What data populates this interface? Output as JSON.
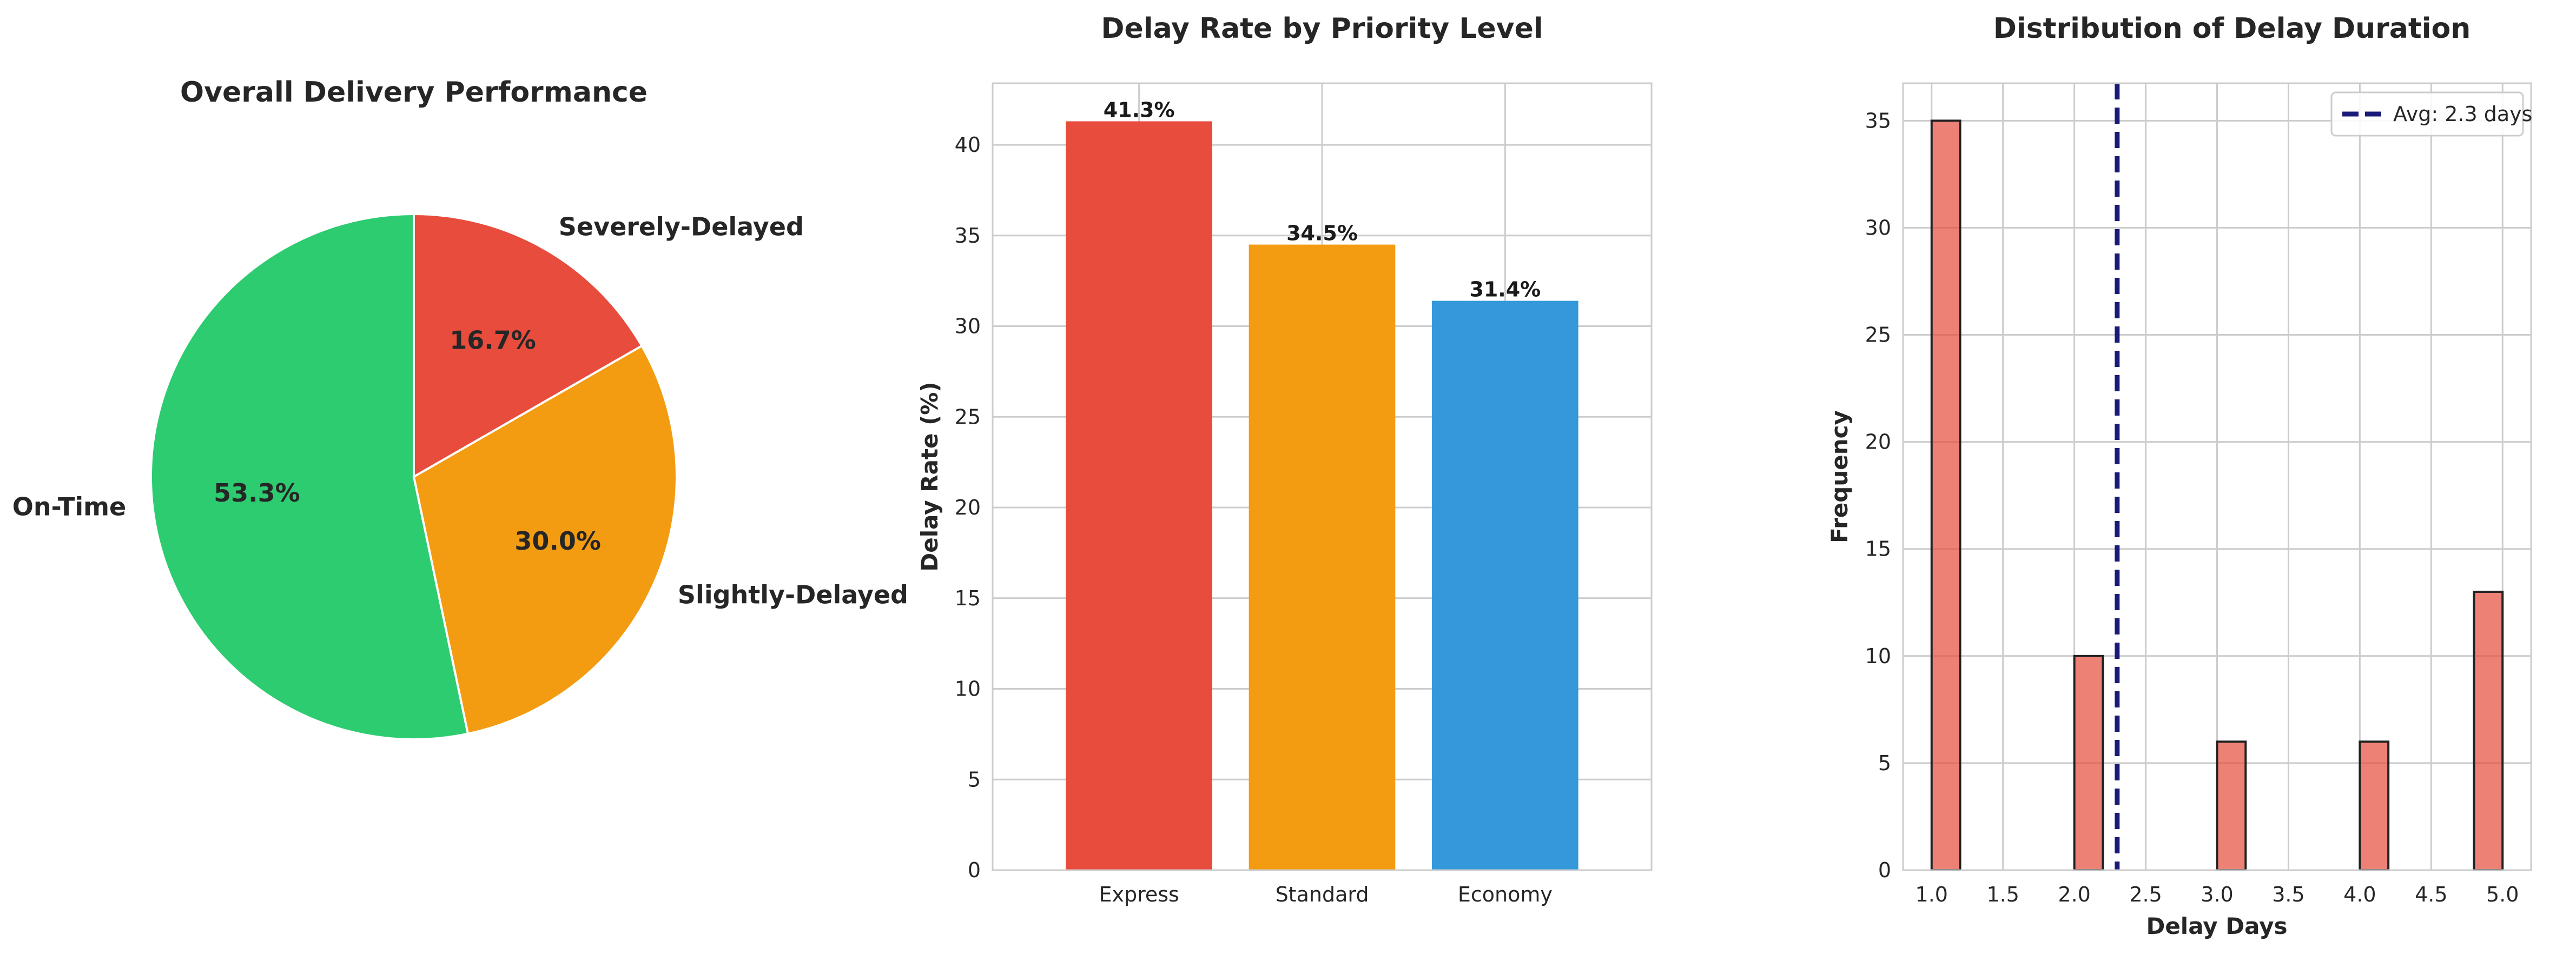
{
  "chart_data": [
    {
      "type": "pie",
      "title": "Overall Delivery Performance",
      "slices": [
        {
          "label": "On-Time",
          "value": 53.3,
          "pct_label": "53.3%",
          "color": "#2ecc71"
        },
        {
          "label": "Slightly-Delayed",
          "value": 30.0,
          "pct_label": "30.0%",
          "color": "#f39c12"
        },
        {
          "label": "Severely-Delayed",
          "value": 16.7,
          "pct_label": "16.7%",
          "color": "#e74c3c"
        }
      ],
      "start_angle_deg": 90,
      "direction": "counterclockwise"
    },
    {
      "type": "bar",
      "title": "Delay Rate by Priority Level",
      "categories": [
        "Express",
        "Standard",
        "Economy"
      ],
      "values": [
        41.3,
        34.5,
        31.4
      ],
      "value_labels": [
        "41.3%",
        "34.5%",
        "31.4%"
      ],
      "colors": [
        "#e74c3c",
        "#f39c12",
        "#3498db"
      ],
      "xlabel": "",
      "ylabel": "Delay Rate (%)",
      "ylim": [
        0,
        43.4
      ],
      "yticks": [
        0,
        5,
        10,
        15,
        20,
        25,
        30,
        35,
        40
      ],
      "grid": true
    },
    {
      "type": "bar",
      "subtype": "histogram",
      "title": "Distribution of Delay Duration",
      "bins": [
        {
          "x0": 1.0,
          "x1": 1.2,
          "count": 35
        },
        {
          "x0": 2.0,
          "x1": 2.2,
          "count": 10
        },
        {
          "x0": 3.0,
          "x1": 3.2,
          "count": 6
        },
        {
          "x0": 4.0,
          "x1": 4.2,
          "count": 6
        },
        {
          "x0": 4.8,
          "x1": 5.0,
          "count": 13
        }
      ],
      "bar_color": "#e74c3c",
      "mean_line": {
        "x": 2.3,
        "label": "Avg: 2.3 days",
        "color": "#1a1a7a"
      },
      "xlabel": "Delay Days",
      "ylabel": "Frequency",
      "xlim": [
        0.8,
        5.2
      ],
      "ylim": [
        0,
        36.75
      ],
      "xticks": [
        1.0,
        1.5,
        2.0,
        2.5,
        3.0,
        3.5,
        4.0,
        4.5,
        5.0
      ],
      "xtick_labels": [
        "1.0",
        "1.5",
        "2.0",
        "2.5",
        "3.0",
        "3.5",
        "4.0",
        "4.5",
        "5.0"
      ],
      "yticks": [
        0,
        5,
        10,
        15,
        20,
        25,
        30,
        35
      ],
      "legend_position": "top-right",
      "grid": true
    }
  ]
}
